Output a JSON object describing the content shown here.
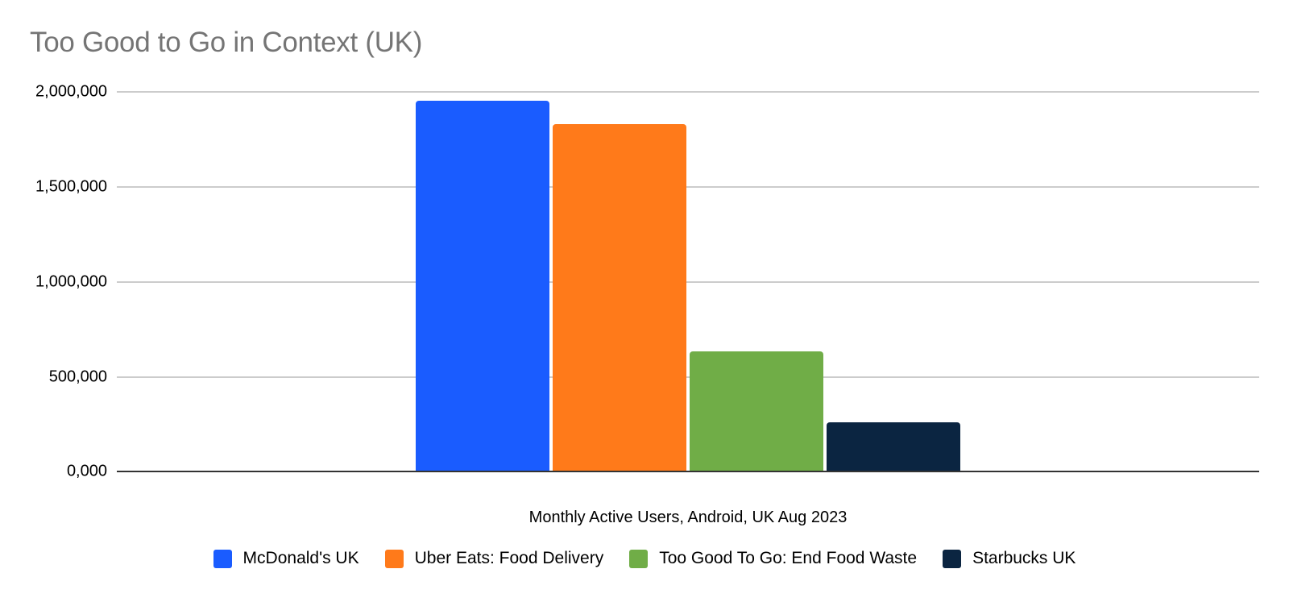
{
  "chart_data": {
    "type": "bar",
    "title": "Too Good to Go in Context (UK)",
    "xlabel": "Monthly Active Users, Android, UK Aug 2023",
    "ylabel": "",
    "ylim": [
      0,
      2000000
    ],
    "yticks": [
      0,
      500000,
      1000000,
      1500000,
      2000000
    ],
    "ytick_labels": [
      "0,000",
      "500,000",
      "1,000,000",
      "1,500,000",
      "2,000,000"
    ],
    "grid": true,
    "legend_position": "bottom",
    "categories": [
      "Monthly Active Users, Android, UK Aug 2023"
    ],
    "series": [
      {
        "name": "McDonald's UK",
        "color": "#1a5cff",
        "values": [
          1950000
        ]
      },
      {
        "name": "Uber Eats: Food Delivery",
        "color": "#ff7a1a",
        "values": [
          1825000
        ]
      },
      {
        "name": "Too Good To Go: End Food Waste",
        "color": "#70ad47",
        "values": [
          630000
        ]
      },
      {
        "name": "Starbucks UK",
        "color": "#0b2541",
        "values": [
          260000
        ]
      }
    ]
  },
  "title": "Too Good to Go in Context (UK)",
  "axis": {
    "x_label": "Monthly Active Users, Android, UK Aug 2023",
    "y_ticks": [
      "0,000",
      "500,000",
      "1,000,000",
      "1,500,000",
      "2,000,000"
    ]
  },
  "legend": [
    {
      "label": "McDonald's UK",
      "color": "#1a5cff"
    },
    {
      "label": "Uber Eats: Food Delivery",
      "color": "#ff7a1a"
    },
    {
      "label": "Too Good To Go: End Food Waste",
      "color": "#70ad47"
    },
    {
      "label": "Starbucks UK",
      "color": "#0b2541"
    }
  ]
}
